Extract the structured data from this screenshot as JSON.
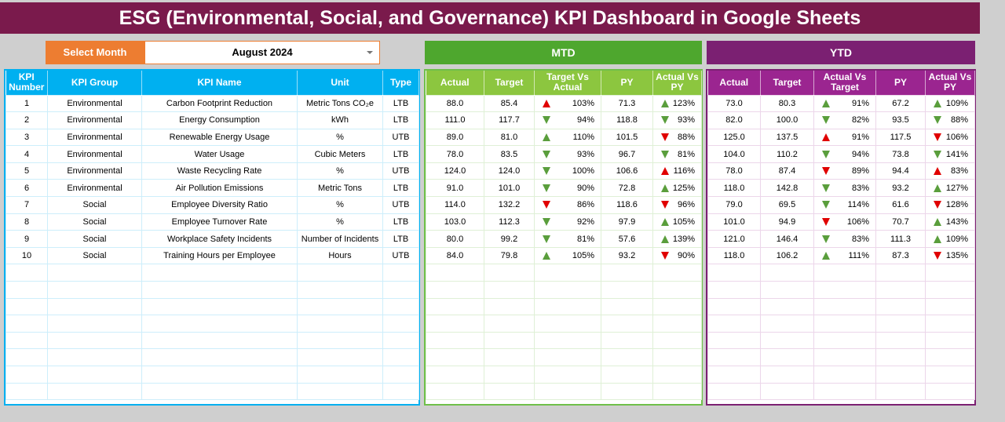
{
  "title": "ESG (Environmental, Social, and Governance) KPI Dashboard in Google Sheets",
  "select_month": {
    "label": "Select Month",
    "value": "August 2024"
  },
  "colors": {
    "title": "#7a1a4c",
    "select": "#ed7d31",
    "kpi": "#00b0f0",
    "mtd": "#4ea72e",
    "ytd": "#7b2072",
    "up_good": "#5a9e3c",
    "bad": "#e00000"
  },
  "kpi_table": {
    "headers": [
      "KPI Number",
      "KPI Group",
      "KPI Name",
      "Unit",
      "Type"
    ],
    "rows": [
      [
        "1",
        "Environmental",
        "Carbon Footprint Reduction",
        "Metric Tons CO₂e",
        "LTB"
      ],
      [
        "2",
        "Environmental",
        "Energy Consumption",
        "kWh",
        "LTB"
      ],
      [
        "3",
        "Environmental",
        "Renewable Energy Usage",
        "%",
        "UTB"
      ],
      [
        "4",
        "Environmental",
        "Water Usage",
        "Cubic Meters",
        "LTB"
      ],
      [
        "5",
        "Environmental",
        "Waste Recycling Rate",
        "%",
        "UTB"
      ],
      [
        "6",
        "Environmental",
        "Air Pollution Emissions",
        "Metric Tons",
        "LTB"
      ],
      [
        "7",
        "Social",
        "Employee Diversity Ratio",
        "%",
        "UTB"
      ],
      [
        "8",
        "Social",
        "Employee Turnover Rate",
        "%",
        "LTB"
      ],
      [
        "9",
        "Social",
        "Workplace Safety Incidents",
        "Number of Incidents",
        "LTB"
      ],
      [
        "10",
        "Social",
        "Training Hours per Employee",
        "Hours",
        "UTB"
      ]
    ]
  },
  "mtd": {
    "label": "MTD",
    "headers": [
      "Actual",
      "Target",
      "Target Vs Actual",
      "PY",
      "Actual Vs PY"
    ],
    "rows": [
      [
        "88.0",
        "85.4",
        "up-red",
        "103%",
        "71.3",
        "up-green",
        "123%"
      ],
      [
        "111.0",
        "117.7",
        "down-green",
        "94%",
        "118.8",
        "down-green",
        "93%"
      ],
      [
        "89.0",
        "81.0",
        "up-green",
        "110%",
        "101.5",
        "down-red",
        "88%"
      ],
      [
        "78.0",
        "83.5",
        "down-green",
        "93%",
        "96.7",
        "down-green",
        "81%"
      ],
      [
        "124.0",
        "124.0",
        "down-green",
        "100%",
        "106.6",
        "up-red",
        "116%"
      ],
      [
        "91.0",
        "101.0",
        "down-green",
        "90%",
        "72.8",
        "up-green",
        "125%"
      ],
      [
        "114.0",
        "132.2",
        "down-red",
        "86%",
        "118.6",
        "down-red",
        "96%"
      ],
      [
        "103.0",
        "112.3",
        "down-green",
        "92%",
        "97.9",
        "up-green",
        "105%"
      ],
      [
        "80.0",
        "99.2",
        "down-green",
        "81%",
        "57.6",
        "up-green",
        "139%"
      ],
      [
        "84.0",
        "79.8",
        "up-green",
        "105%",
        "93.2",
        "down-red",
        "90%"
      ]
    ]
  },
  "ytd": {
    "label": "YTD",
    "headers": [
      "Actual",
      "Target",
      "Actual Vs Target",
      "PY",
      "Actual Vs PY"
    ],
    "rows": [
      [
        "73.0",
        "80.3",
        "up-green",
        "91%",
        "67.2",
        "up-green",
        "109%"
      ],
      [
        "82.0",
        "100.0",
        "down-green",
        "82%",
        "93.5",
        "down-green",
        "88%"
      ],
      [
        "125.0",
        "137.5",
        "up-red",
        "91%",
        "117.5",
        "down-red",
        "106%"
      ],
      [
        "104.0",
        "110.2",
        "down-green",
        "94%",
        "73.8",
        "down-green",
        "141%"
      ],
      [
        "78.0",
        "87.4",
        "down-red",
        "89%",
        "94.4",
        "up-red",
        "83%"
      ],
      [
        "118.0",
        "142.8",
        "down-green",
        "83%",
        "93.2",
        "up-green",
        "127%"
      ],
      [
        "79.0",
        "69.5",
        "down-green",
        "114%",
        "61.6",
        "down-red",
        "128%"
      ],
      [
        "101.0",
        "94.9",
        "down-red",
        "106%",
        "70.7",
        "up-green",
        "143%"
      ],
      [
        "121.0",
        "146.4",
        "down-green",
        "83%",
        "111.3",
        "up-green",
        "109%"
      ],
      [
        "118.0",
        "106.2",
        "up-green",
        "111%",
        "87.3",
        "down-red",
        "135%"
      ]
    ]
  }
}
